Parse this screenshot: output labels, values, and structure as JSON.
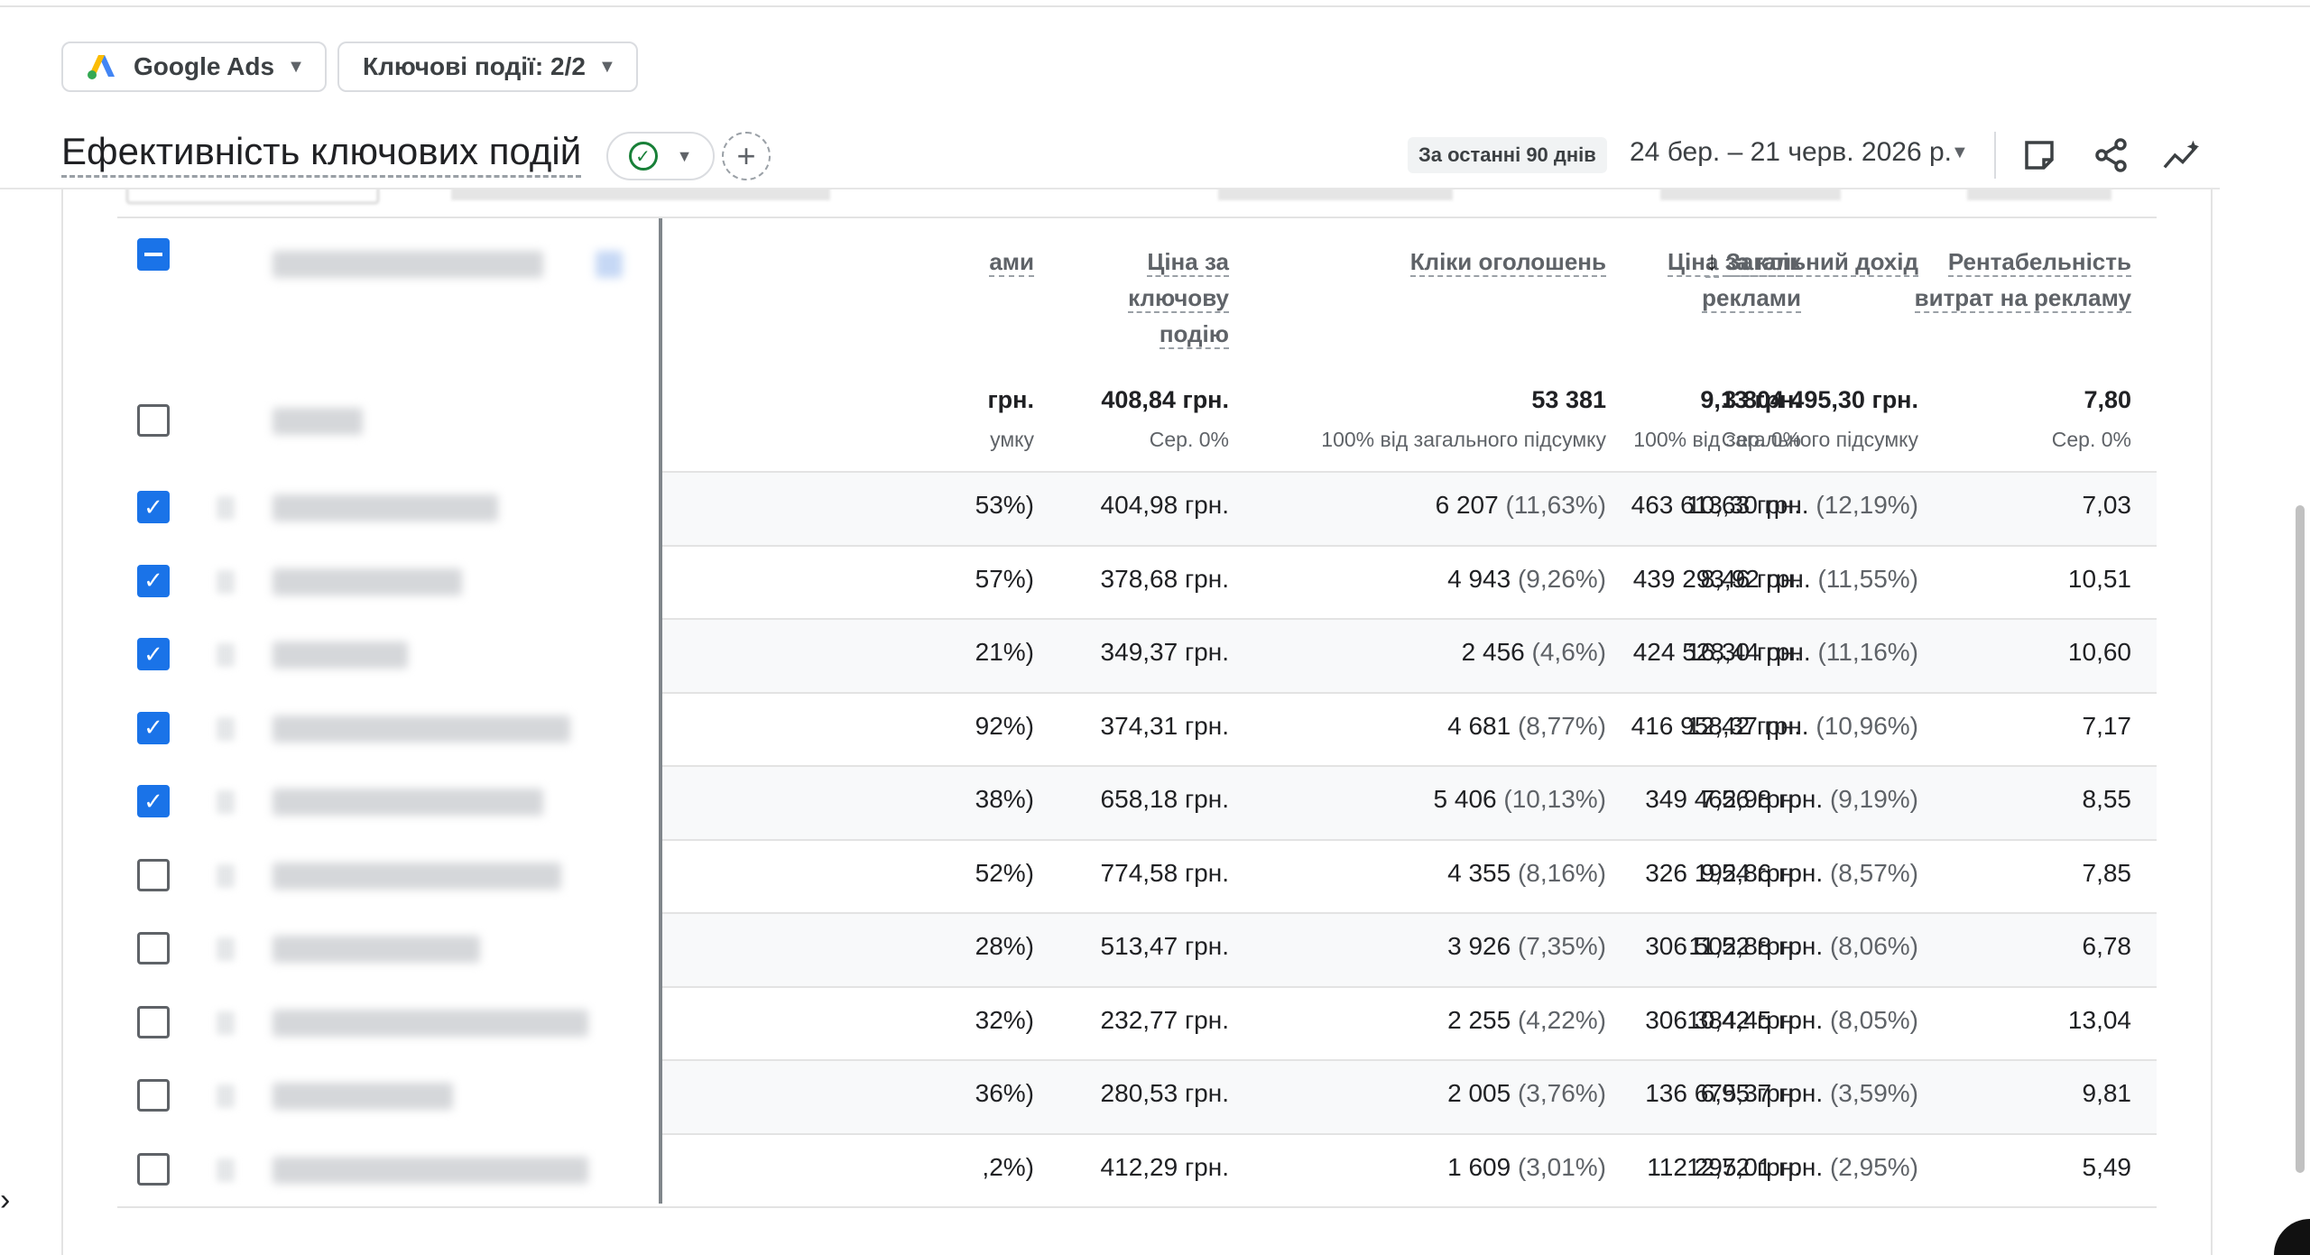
{
  "filters": {
    "google_ads_label": "Google Ads",
    "key_events_label": "Ключові події: 2/2"
  },
  "report": {
    "title": "Ефективність ключових подій",
    "date_preset": "За останні 90 днів",
    "date_range": "24 бер. – 21 черв. 2026 р."
  },
  "icons": [
    "google-ads-logo",
    "check-circle-icon",
    "add-icon",
    "notes-icon",
    "share-icon",
    "insights-icon",
    "chevron-right-icon"
  ],
  "colors": {
    "accent": "#1a73e8",
    "success": "#188038",
    "text": "#202124",
    "muted": "#5f6368"
  },
  "table": {
    "columns": [
      {
        "key": "partial",
        "label": "ами"
      },
      {
        "key": "cost_per_key_event",
        "label": "Ціна за ключову подію"
      },
      {
        "key": "ad_clicks",
        "label": "Кліки оголошень"
      },
      {
        "key": "cpc",
        "label": "Ціна за клік реклами"
      },
      {
        "key": "total_revenue",
        "label": "Загальний дохід",
        "sorted": "desc"
      },
      {
        "key": "roas",
        "label": "Рентабельність витрат на рекламу"
      }
    ],
    "totals": {
      "partial": {
        "value": "грн.",
        "sub": "умку"
      },
      "cost_per_key_event": {
        "value": "408,84 грн.",
        "sub": "Сер. 0%"
      },
      "ad_clicks": {
        "value": "53 381",
        "sub": "100% від загального підсумку"
      },
      "cpc": {
        "value": "9,13 грн.",
        "sub": "Сер. 0%"
      },
      "total_revenue": {
        "value": "3 804 495,30 грн.",
        "sub": "100% від загального підсумку"
      },
      "roas": {
        "value": "7,80",
        "sub": "Сер. 0%"
      }
    },
    "rows": [
      {
        "checked": true,
        "partial": "53%)",
        "cost_per_key_event": "404,98 грн.",
        "clicks": "6 207",
        "clicks_pct": "(11,63%)",
        "cpc": "10,63 грн.",
        "revenue": "463 613,30 грн.",
        "revenue_pct": "(12,19%)",
        "roas": "7,03"
      },
      {
        "checked": true,
        "partial": "57%)",
        "cost_per_key_event": "378,68 грн.",
        "clicks": "4 943",
        "clicks_pct": "(9,26%)",
        "cpc": "8,46 грн.",
        "revenue": "439 293,92 грн.",
        "revenue_pct": "(11,55%)",
        "roas": "10,51"
      },
      {
        "checked": true,
        "partial": "21%)",
        "cost_per_key_event": "349,37 грн.",
        "clicks": "2 456",
        "clicks_pct": "(4,6%)",
        "cpc": "16,30 грн.",
        "revenue": "424 528,44 грн.",
        "revenue_pct": "(11,16%)",
        "roas": "10,60"
      },
      {
        "checked": true,
        "partial": "92%)",
        "cost_per_key_event": "374,31 грн.",
        "clicks": "4 681",
        "clicks_pct": "(8,77%)",
        "cpc": "12,42 грн.",
        "revenue": "416 958,37 грн.",
        "revenue_pct": "(10,96%)",
        "roas": "7,17"
      },
      {
        "checked": true,
        "partial": "38%)",
        "cost_per_key_event": "658,18 грн.",
        "clicks": "5 406",
        "clicks_pct": "(10,13%)",
        "cpc": "7,56 грн.",
        "revenue": "349 462,98 грн.",
        "revenue_pct": "(9,19%)",
        "roas": "8,55"
      },
      {
        "checked": false,
        "partial": "52%)",
        "cost_per_key_event": "774,58 грн.",
        "clicks": "4 355",
        "clicks_pct": "(8,16%)",
        "cpc": "9,54 грн.",
        "revenue": "326 192,86 грн.",
        "revenue_pct": "(8,57%)",
        "roas": "7,85"
      },
      {
        "checked": false,
        "partial": "28%)",
        "cost_per_key_event": "513,47 грн.",
        "clicks": "3 926",
        "clicks_pct": "(7,35%)",
        "cpc": "11,52 грн.",
        "revenue": "306 502,88 грн.",
        "revenue_pct": "(8,06%)",
        "roas": "6,78"
      },
      {
        "checked": false,
        "partial": "32%)",
        "cost_per_key_event": "232,77 грн.",
        "clicks": "2 255",
        "clicks_pct": "(4,22%)",
        "cpc": "10,42 грн.",
        "revenue": "306 384,45 грн.",
        "revenue_pct": "(8,05%)",
        "roas": "13,04"
      },
      {
        "checked": false,
        "partial": "36%)",
        "cost_per_key_event": "280,53 грн.",
        "clicks": "2 005",
        "clicks_pct": "(3,76%)",
        "cpc": "6,95 грн.",
        "revenue": "136 675,37 грн.",
        "revenue_pct": "(3,59%)",
        "roas": "9,81"
      },
      {
        "checked": false,
        "partial": ",2%)",
        "cost_per_key_event": "412,29 грн.",
        "clicks": "1 609",
        "clicks_pct": "(3,01%)",
        "cpc": "12,72 грн.",
        "revenue": "112 295,01 грн.",
        "revenue_pct": "(2,95%)",
        "roas": "5,49"
      }
    ]
  }
}
